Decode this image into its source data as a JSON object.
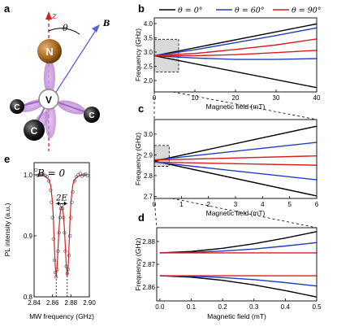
{
  "panels": {
    "a": "a",
    "b": "b",
    "c": "c",
    "d": "d",
    "e": "e"
  },
  "molecule": {
    "axis_label": "z",
    "angle_label": "θ",
    "field_label": "B",
    "atoms": {
      "n": "N",
      "v": "V",
      "c1": "C",
      "c2": "C",
      "c3": "C"
    }
  },
  "legend": [
    {
      "label": "θ = 0°",
      "color": "#000000"
    },
    {
      "label": "θ = 60°",
      "color": "#1f3fbf"
    },
    {
      "label": "θ = 90°",
      "color": "#d42020"
    }
  ],
  "chart_data": [
    {
      "id": "b",
      "type": "line",
      "xlabel": "Magnetic field (mT)",
      "ylabel": "Frequency (GHz)",
      "xlim": [
        0,
        40
      ],
      "ylim": [
        1.6,
        4.2
      ],
      "xticks": [
        0,
        10,
        20,
        30,
        40
      ],
      "yticks": [
        2.0,
        2.5,
        3.0,
        3.5,
        4.0
      ],
      "xtick_labels": [
        "0",
        "10",
        "20",
        "30",
        "40"
      ],
      "ytick_labels": [
        "2.0",
        "2.5",
        "3.0",
        "3.5",
        "4.0"
      ],
      "inset_box": {
        "x": [
          0,
          6
        ],
        "y": [
          2.3,
          3.45
        ]
      },
      "series": [
        {
          "theta": 0,
          "color": "#000000",
          "x": [
            0,
            40
          ],
          "y": [
            2.87,
            3.99
          ]
        },
        {
          "theta": 0,
          "color": "#000000",
          "x": [
            0,
            40
          ],
          "y": [
            2.87,
            1.75
          ]
        },
        {
          "theta": 60,
          "color": "#1f3fbf",
          "x": [
            0,
            10,
            20,
            30,
            40
          ],
          "y": [
            2.87,
            3.08,
            3.33,
            3.58,
            3.85
          ]
        },
        {
          "theta": 60,
          "color": "#1f3fbf",
          "x": [
            0,
            10,
            20,
            30,
            40
          ],
          "y": [
            2.87,
            2.79,
            2.74,
            2.74,
            2.77
          ]
        },
        {
          "theta": 90,
          "color": "#d42020",
          "x": [
            0,
            10,
            20,
            30,
            40
          ],
          "y": [
            2.875,
            2.95,
            3.09,
            3.25,
            3.46
          ]
        },
        {
          "theta": 90,
          "color": "#d42020",
          "x": [
            0,
            10,
            20,
            30,
            40
          ],
          "y": [
            2.865,
            2.87,
            2.91,
            2.98,
            3.06
          ]
        }
      ]
    },
    {
      "id": "c",
      "type": "line",
      "xlabel": "Magnetic field (mT)",
      "ylabel": "Frequency (GHz)",
      "xlim": [
        0,
        6
      ],
      "ylim": [
        2.69,
        3.07
      ],
      "xticks": [
        0,
        1,
        2,
        3,
        4,
        5,
        6
      ],
      "yticks": [
        2.7,
        2.8,
        2.9,
        3.0
      ],
      "xtick_labels": [
        "0",
        "1",
        "2",
        "3",
        "4",
        "5",
        "6"
      ],
      "ytick_labels": [
        "2.7",
        "2.8",
        "2.9",
        "3.0"
      ],
      "inset_box": {
        "x": [
          0,
          0.55
        ],
        "y": [
          2.845,
          2.945
        ]
      },
      "series": [
        {
          "theta": 0,
          "color": "#000000",
          "x": [
            0,
            6
          ],
          "y": [
            2.87,
            3.038
          ]
        },
        {
          "theta": 0,
          "color": "#000000",
          "x": [
            0,
            6
          ],
          "y": [
            2.87,
            2.702
          ]
        },
        {
          "theta": 60,
          "color": "#1f3fbf",
          "x": [
            0,
            6
          ],
          "y": [
            2.875,
            2.96
          ]
        },
        {
          "theta": 60,
          "color": "#1f3fbf",
          "x": [
            0,
            6
          ],
          "y": [
            2.865,
            2.78
          ]
        },
        {
          "theta": 90,
          "color": "#d42020",
          "x": [
            0,
            6
          ],
          "y": [
            2.875,
            2.895
          ]
        },
        {
          "theta": 90,
          "color": "#d42020",
          "x": [
            0,
            6
          ],
          "y": [
            2.865,
            2.85
          ]
        }
      ]
    },
    {
      "id": "d",
      "type": "line",
      "xlabel": "Magnetic field (mT)",
      "ylabel": "Frequency (GHz)",
      "xlim": [
        -0.01,
        0.5
      ],
      "ylim": [
        2.854,
        2.886
      ],
      "xticks": [
        0,
        0.1,
        0.2,
        0.3,
        0.4,
        0.5
      ],
      "yticks": [
        2.86,
        2.87,
        2.88
      ],
      "xtick_labels": [
        "0.0",
        "0.1",
        "0.2",
        "0.3",
        "0.4",
        "0.5"
      ],
      "ytick_labels": [
        "2.86",
        "2.87",
        "2.88"
      ],
      "series": [
        {
          "theta": 0,
          "color": "#000000",
          "x": [
            0,
            0.1,
            0.2,
            0.3,
            0.4,
            0.5
          ],
          "y": [
            2.875,
            2.8756,
            2.877,
            2.879,
            2.8815,
            2.8843
          ]
        },
        {
          "theta": 0,
          "color": "#000000",
          "x": [
            0,
            0.1,
            0.2,
            0.3,
            0.4,
            0.5
          ],
          "y": [
            2.865,
            2.8644,
            2.863,
            2.861,
            2.8585,
            2.8557
          ]
        },
        {
          "theta": 60,
          "color": "#1f3fbf",
          "x": [
            0,
            0.1,
            0.2,
            0.3,
            0.4,
            0.5
          ],
          "y": [
            2.875,
            2.8752,
            2.8758,
            2.8767,
            2.878,
            2.8795
          ]
        },
        {
          "theta": 60,
          "color": "#1f3fbf",
          "x": [
            0,
            0.1,
            0.2,
            0.3,
            0.4,
            0.5
          ],
          "y": [
            2.865,
            2.8648,
            2.8642,
            2.8633,
            2.862,
            2.8605
          ]
        },
        {
          "theta": 90,
          "color": "#d42020",
          "x": [
            0,
            0.5
          ],
          "y": [
            2.875,
            2.875
          ]
        },
        {
          "theta": 90,
          "color": "#d42020",
          "x": [
            0,
            0.5
          ],
          "y": [
            2.865,
            2.865
          ]
        }
      ]
    },
    {
      "id": "e",
      "type": "scatter",
      "xlabel": "MW frequency (GHz)",
      "ylabel": "PL intensity (a.u.)",
      "annotation": "B = 0",
      "splitting_label": "2E",
      "xlim": [
        2.84,
        2.9
      ],
      "ylim": [
        0.8,
        1.02
      ],
      "xticks": [
        2.84,
        2.86,
        2.88,
        2.9
      ],
      "yticks": [
        0.8,
        0.9,
        1.0
      ],
      "xtick_labels": [
        "2.84",
        "2.86",
        "2.88",
        "2.90"
      ],
      "ytick_labels": [
        "0.8",
        "0.9",
        "1.0"
      ],
      "dips": [
        2.864,
        2.876
      ],
      "points": {
        "x": [
          2.842,
          2.844,
          2.846,
          2.848,
          2.85,
          2.852,
          2.854,
          2.856,
          2.858,
          2.859,
          2.86,
          2.861,
          2.862,
          2.863,
          2.864,
          2.865,
          2.866,
          2.867,
          2.868,
          2.869,
          2.87,
          2.871,
          2.872,
          2.873,
          2.874,
          2.875,
          2.876,
          2.877,
          2.878,
          2.879,
          2.88,
          2.881,
          2.882,
          2.884,
          2.886,
          2.888,
          2.89,
          2.892,
          2.894,
          2.896,
          2.898
        ],
        "y": [
          1.008,
          0.999,
          1.0,
          1.002,
          1.001,
          0.999,
          0.997,
          0.99,
          0.975,
          0.955,
          0.93,
          0.895,
          0.86,
          0.84,
          0.833,
          0.845,
          0.875,
          0.905,
          0.93,
          0.945,
          0.95,
          0.945,
          0.93,
          0.905,
          0.875,
          0.85,
          0.838,
          0.845,
          0.868,
          0.9,
          0.93,
          0.955,
          0.972,
          0.99,
          0.997,
          1.0,
          1.002,
          0.998,
          1.0,
          1.001,
          0.999
        ]
      },
      "fit": {
        "x": [
          2.842,
          2.846,
          2.85,
          2.853,
          2.856,
          2.858,
          2.86,
          2.861,
          2.862,
          2.863,
          2.864,
          2.865,
          2.866,
          2.867,
          2.868,
          2.869,
          2.87,
          2.871,
          2.872,
          2.873,
          2.874,
          2.875,
          2.876,
          2.877,
          2.878,
          2.879,
          2.88,
          2.882,
          2.884,
          2.887,
          2.89,
          2.894,
          2.898
        ],
        "y": [
          1.0,
          1.0,
          0.999,
          0.997,
          0.992,
          0.983,
          0.955,
          0.925,
          0.885,
          0.85,
          0.833,
          0.848,
          0.88,
          0.91,
          0.932,
          0.945,
          0.948,
          0.945,
          0.932,
          0.91,
          0.88,
          0.85,
          0.835,
          0.85,
          0.885,
          0.925,
          0.955,
          0.983,
          0.992,
          0.997,
          0.999,
          1.0,
          1.0
        ]
      }
    }
  ]
}
